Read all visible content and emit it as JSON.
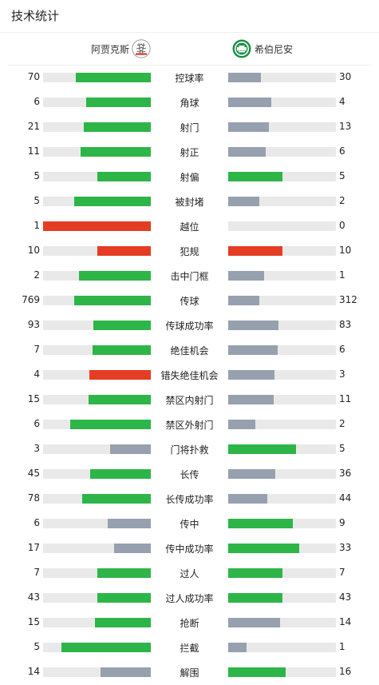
{
  "header": {
    "title": "技术统计"
  },
  "teams": {
    "home": "阿贾克斯",
    "away": "希伯尼安"
  },
  "colors": {
    "better": "#2db548",
    "worse": "#97a0ae",
    "warning": "#e43d24",
    "track": "#e9e9e9"
  },
  "stats": [
    {
      "label": "控球率",
      "home": 70,
      "away": 30,
      "hf": 0.7,
      "af": 0.3,
      "hc": "better",
      "ac": "worse"
    },
    {
      "label": "角球",
      "home": 6,
      "away": 4,
      "hf": 0.6,
      "af": 0.4,
      "hc": "better",
      "ac": "worse"
    },
    {
      "label": "射门",
      "home": 21,
      "away": 13,
      "hf": 0.62,
      "af": 0.38,
      "hc": "better",
      "ac": "worse"
    },
    {
      "label": "射正",
      "home": 11,
      "away": 6,
      "hf": 0.65,
      "af": 0.35,
      "hc": "better",
      "ac": "worse"
    },
    {
      "label": "射偏",
      "home": 5,
      "away": 5,
      "hf": 0.5,
      "af": 0.5,
      "hc": "better",
      "ac": "better"
    },
    {
      "label": "被封堵",
      "home": 5,
      "away": 2,
      "hf": 0.71,
      "af": 0.29,
      "hc": "better",
      "ac": "worse"
    },
    {
      "label": "越位",
      "home": 1,
      "away": 0,
      "hf": 1.0,
      "af": 0.0,
      "hc": "warning",
      "ac": "worse"
    },
    {
      "label": "犯规",
      "home": 10,
      "away": 10,
      "hf": 0.5,
      "af": 0.5,
      "hc": "warning",
      "ac": "warning"
    },
    {
      "label": "击中门框",
      "home": 2,
      "away": 1,
      "hf": 0.67,
      "af": 0.33,
      "hc": "better",
      "ac": "worse"
    },
    {
      "label": "传球",
      "home": 769,
      "away": 312,
      "hf": 0.71,
      "af": 0.29,
      "hc": "better",
      "ac": "worse"
    },
    {
      "label": "传球成功率",
      "home": 93,
      "away": 83,
      "hf": 0.53,
      "af": 0.47,
      "hc": "better",
      "ac": "worse"
    },
    {
      "label": "绝佳机会",
      "home": 7,
      "away": 6,
      "hf": 0.54,
      "af": 0.46,
      "hc": "better",
      "ac": "worse"
    },
    {
      "label": "错失绝佳机会",
      "home": 4,
      "away": 3,
      "hf": 0.57,
      "af": 0.43,
      "hc": "warning",
      "ac": "worse"
    },
    {
      "label": "禁区内射门",
      "home": 15,
      "away": 11,
      "hf": 0.58,
      "af": 0.42,
      "hc": "better",
      "ac": "worse"
    },
    {
      "label": "禁区外射门",
      "home": 6,
      "away": 2,
      "hf": 0.75,
      "af": 0.25,
      "hc": "better",
      "ac": "worse"
    },
    {
      "label": "门将扑救",
      "home": 3,
      "away": 5,
      "hf": 0.38,
      "af": 0.63,
      "hc": "worse",
      "ac": "better"
    },
    {
      "label": "长传",
      "home": 45,
      "away": 36,
      "hf": 0.56,
      "af": 0.44,
      "hc": "better",
      "ac": "worse"
    },
    {
      "label": "长传成功率",
      "home": 78,
      "away": 44,
      "hf": 0.64,
      "af": 0.36,
      "hc": "better",
      "ac": "worse"
    },
    {
      "label": "传中",
      "home": 6,
      "away": 9,
      "hf": 0.4,
      "af": 0.6,
      "hc": "worse",
      "ac": "better"
    },
    {
      "label": "传中成功率",
      "home": 17,
      "away": 33,
      "hf": 0.34,
      "af": 0.66,
      "hc": "worse",
      "ac": "better"
    },
    {
      "label": "过人",
      "home": 7,
      "away": 7,
      "hf": 0.5,
      "af": 0.5,
      "hc": "better",
      "ac": "better"
    },
    {
      "label": "过人成功率",
      "home": 43,
      "away": 43,
      "hf": 0.5,
      "af": 0.5,
      "hc": "better",
      "ac": "better"
    },
    {
      "label": "抢断",
      "home": 15,
      "away": 14,
      "hf": 0.52,
      "af": 0.48,
      "hc": "better",
      "ac": "worse"
    },
    {
      "label": "拦截",
      "home": 5,
      "away": 1,
      "hf": 0.83,
      "af": 0.17,
      "hc": "better",
      "ac": "worse"
    },
    {
      "label": "解围",
      "home": 14,
      "away": 16,
      "hf": 0.47,
      "af": 0.53,
      "hc": "worse",
      "ac": "better"
    }
  ]
}
